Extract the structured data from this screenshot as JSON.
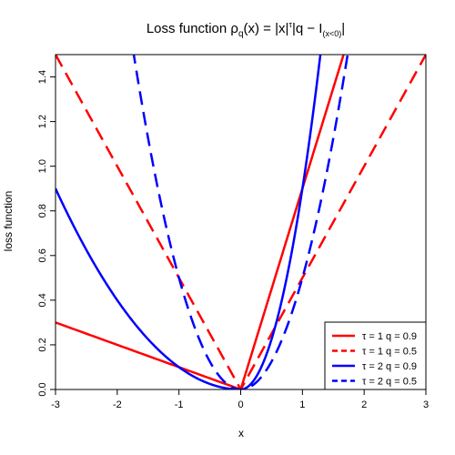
{
  "chart_data": {
    "type": "line",
    "title_parts": {
      "prefix": "Loss function ",
      "rho": "ρ",
      "q": "q",
      "mid": "(x) = |x|",
      "tau": "τ",
      "bar_q": "|q − I",
      "sub": "(x<0)",
      "suffix": "|"
    },
    "xlabel": "x",
    "ylabel": "loss function",
    "xlim": [
      -3,
      3
    ],
    "ylim": [
      0,
      1.5
    ],
    "x_ticks": [
      -3,
      -2,
      -1,
      0,
      1,
      2,
      3
    ],
    "x_tick_labels": [
      "-3",
      "-2",
      "-1",
      "0",
      "1",
      "2",
      "3"
    ],
    "y_ticks": [
      0.0,
      0.2,
      0.4,
      0.6,
      0.8,
      1.0,
      1.2,
      1.4
    ],
    "y_tick_labels": [
      "0.0",
      "0.2",
      "0.4",
      "0.6",
      "0.8",
      "1.0",
      "1.2",
      "1.4"
    ],
    "grid": false,
    "legend_position": "bottom-right",
    "series": [
      {
        "name": "τ = 1 q = 0.9",
        "tau": 1,
        "q": 0.9,
        "color": "#ff0000",
        "dash": "solid"
      },
      {
        "name": "τ = 1 q = 0.5",
        "tau": 1,
        "q": 0.5,
        "color": "#ff0000",
        "dash": "dashed"
      },
      {
        "name": "τ = 2 q = 0.9",
        "tau": 2,
        "q": 0.9,
        "color": "#0000ff",
        "dash": "solid"
      },
      {
        "name": "τ = 2 q = 0.5",
        "tau": 2,
        "q": 0.5,
        "color": "#0000ff",
        "dash": "dashed"
      }
    ],
    "x_samples": [
      -3,
      -2.5,
      -2,
      -1.5,
      -1,
      -0.5,
      0,
      0.5,
      1,
      1.5,
      2,
      2.5,
      3
    ]
  }
}
